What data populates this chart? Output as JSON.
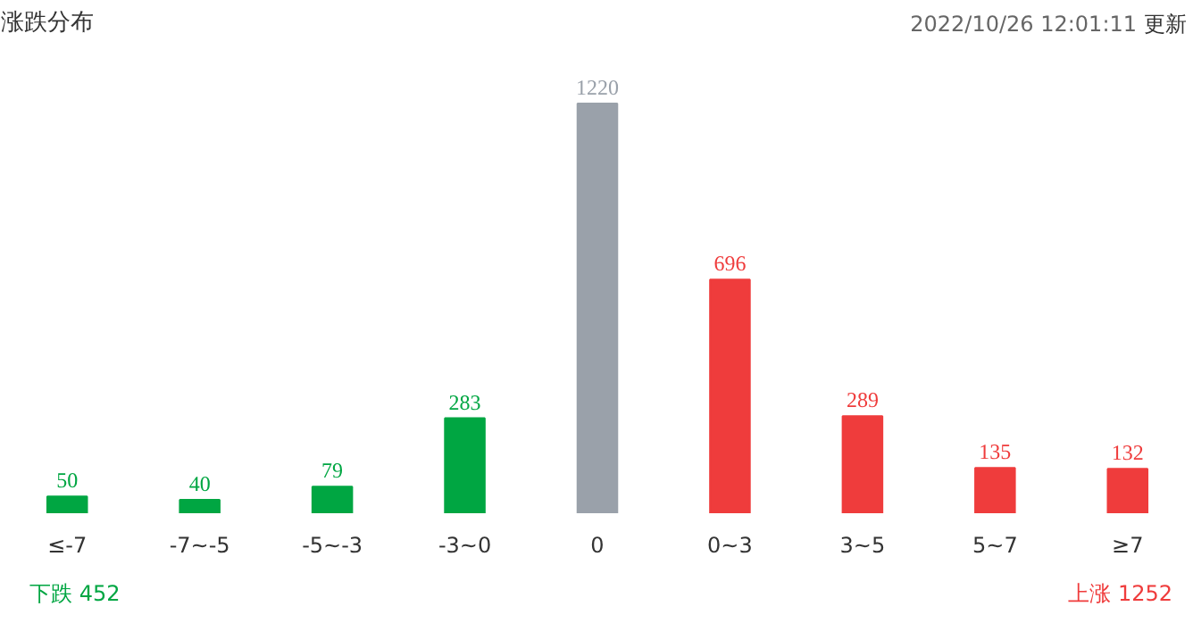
{
  "chart_data": {
    "type": "bar",
    "title": "涨跌分布",
    "categories": [
      "≤-7",
      "-7~-5",
      "-5~-3",
      "-3~0",
      "0",
      "0~3",
      "3~5",
      "5~7",
      "≥7"
    ],
    "values": [
      50,
      40,
      79,
      283,
      1220,
      696,
      289,
      135,
      132
    ],
    "colors": [
      "#00a642",
      "#00a642",
      "#00a642",
      "#00a642",
      "#9aa1aa",
      "#ef3c3c",
      "#ef3c3c",
      "#ef3c3c",
      "#ef3c3c"
    ],
    "data_labels": true,
    "tick_labels": "x",
    "annotations": [
      "2022/10/26 12:01:11",
      "更新",
      "下跌 452",
      "上涨 1252"
    ]
  }
}
